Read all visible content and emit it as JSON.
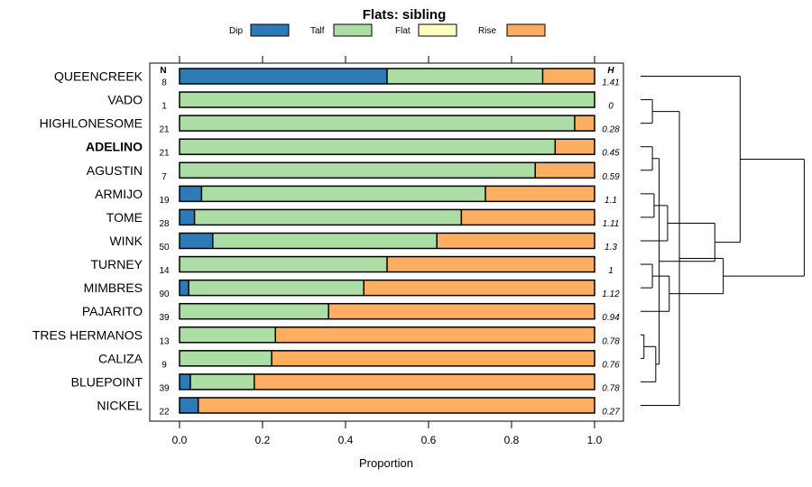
{
  "chart_data": {
    "type": "bar",
    "orientation": "horizontal",
    "stacked": true,
    "title": "Flats: sibling",
    "xlabel": "Proportion",
    "ylabel": "",
    "xlim": [
      -0.07,
      1.07
    ],
    "xticks": [
      "0.0",
      "0.2",
      "0.4",
      "0.6",
      "0.8",
      "1.0"
    ],
    "xtick_values": [
      0,
      0.2,
      0.4,
      0.6,
      0.8,
      1.0
    ],
    "legend": {
      "placement": "top",
      "entries": [
        {
          "name": "Dip",
          "color": "#2c7bb6"
        },
        {
          "name": "Talf",
          "color": "#abdda4"
        },
        {
          "name": "Flat",
          "color": "#ffffbf"
        },
        {
          "name": "Rise",
          "color": "#fdae61"
        }
      ]
    },
    "n_header": "N",
    "h_header": "H",
    "categories": [
      "QUEENCREEK",
      "VADO",
      "HIGHLONESOME",
      "ADELINO",
      "AGUSTIN",
      "ARMIJO",
      "TOME",
      "WINK",
      "TURNEY",
      "MIMBRES",
      "PAJARITO",
      "TRES HERMANOS",
      "CALIZA",
      "BLUEPOINT",
      "NICKEL"
    ],
    "bold_categories": [
      "ADELINO"
    ],
    "n": [
      "8",
      "1",
      "21",
      "21",
      "7",
      "19",
      "28",
      "50",
      "14",
      "90",
      "39",
      "13",
      "9",
      "39",
      "22"
    ],
    "h": [
      "1.41",
      "0",
      "0.28",
      "0.45",
      "0.59",
      "1.1",
      "1.11",
      "1.3",
      "1",
      "1.12",
      "0.94",
      "0.78",
      "0.76",
      "0.78",
      "0.27"
    ],
    "series": [
      {
        "name": "Dip",
        "values": [
          0.5,
          0,
          0,
          0,
          0,
          0.053,
          0.036,
          0.08,
          0,
          0.022,
          0,
          0,
          0,
          0.026,
          0.045
        ]
      },
      {
        "name": "Talf",
        "values": [
          0.375,
          1.0,
          0.952,
          0.905,
          0.857,
          0.684,
          0.643,
          0.54,
          0.5,
          0.422,
          0.359,
          0.231,
          0.222,
          0.154,
          0
        ]
      },
      {
        "name": "Flat",
        "values": [
          0,
          0,
          0,
          0,
          0,
          0,
          0,
          0,
          0,
          0,
          0,
          0,
          0,
          0,
          0
        ]
      },
      {
        "name": "Rise",
        "values": [
          0.125,
          0,
          0.048,
          0.095,
          0.143,
          0.263,
          0.321,
          0.38,
          0.5,
          0.556,
          0.641,
          0.769,
          0.778,
          0.82,
          0.955
        ]
      }
    ]
  },
  "dendrogram": {
    "leaf_order": [
      0,
      1,
      2,
      3,
      4,
      5,
      6,
      7,
      8,
      9,
      10,
      11,
      12,
      13,
      14
    ],
    "merges": [
      [
        11,
        12,
        0.02
      ],
      [
        1,
        2,
        0.07
      ],
      [
        15,
        13,
        0.09
      ],
      [
        3,
        4,
        0.07
      ],
      [
        5,
        6,
        0.08
      ],
      [
        8,
        9,
        0.07
      ],
      [
        17,
        18,
        0.11
      ],
      [
        19,
        7,
        0.16
      ],
      [
        20,
        10,
        0.17
      ],
      [
        16,
        14,
        0.23
      ],
      [
        21,
        22,
        0.44
      ],
      [
        23,
        24,
        0.49
      ],
      [
        0,
        25,
        0.59
      ],
      [
        27,
        26,
        0.97
      ]
    ]
  }
}
